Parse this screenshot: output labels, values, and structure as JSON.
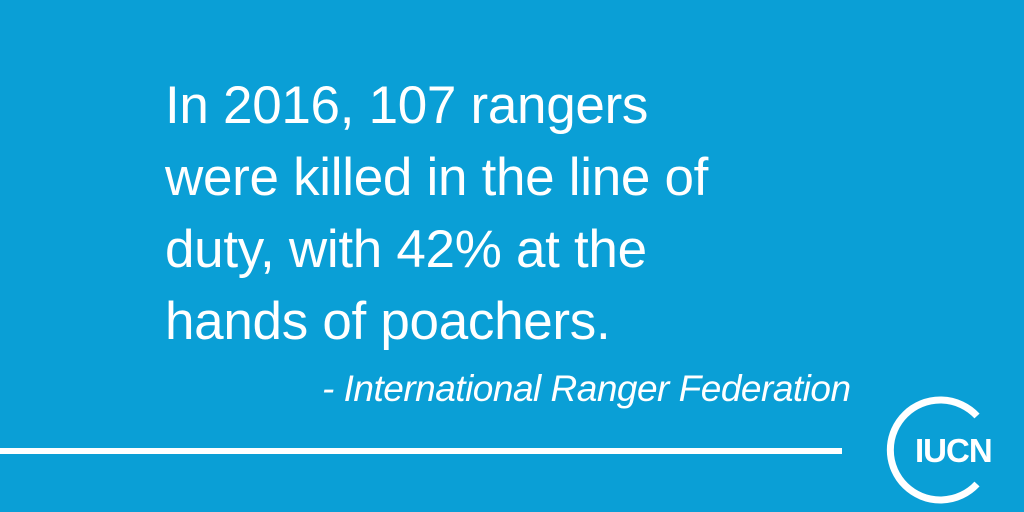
{
  "quote": {
    "lines": [
      "In 2016, 107 rangers",
      "were killed in the line of",
      "duty, with 42% at the",
      "hands of poachers."
    ]
  },
  "attribution": "- International Ranger Federation",
  "logo": {
    "text": "IUCN"
  },
  "colors": {
    "background": "#0a9fd6",
    "foreground": "#ffffff"
  }
}
